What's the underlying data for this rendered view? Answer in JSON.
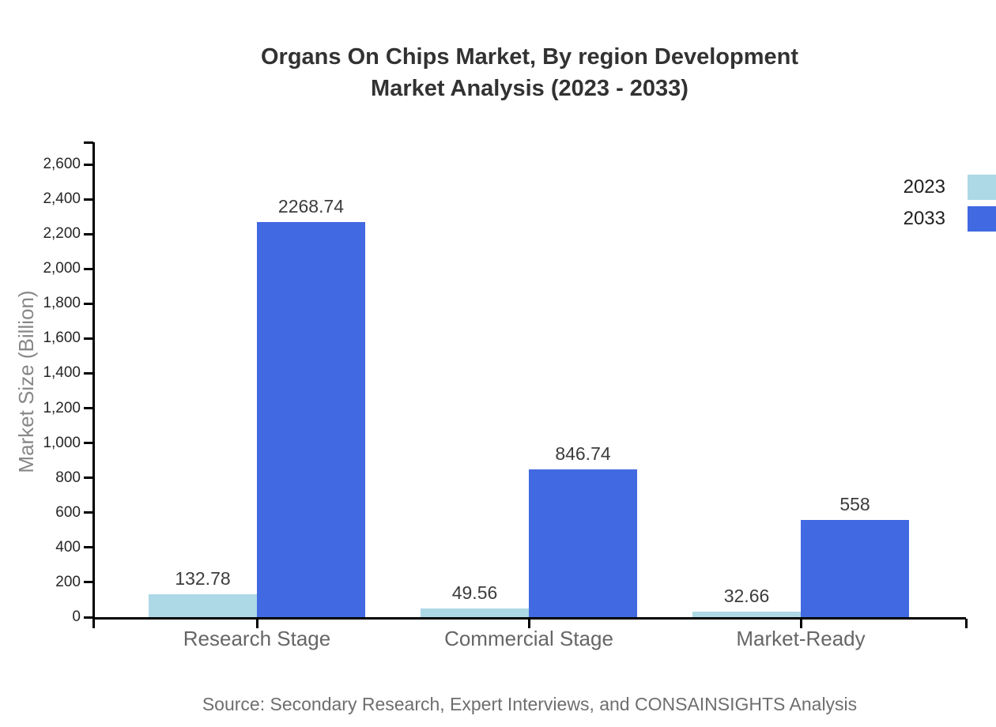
{
  "title": {
    "line1": "Organs On Chips Market, By region Development",
    "line2": "Market Analysis (2023 - 2033)"
  },
  "source": "Source: Secondary Research, Expert Interviews, and CONSAINSIGHTS Analysis",
  "legend": {
    "items": [
      {
        "label": "2023",
        "color": "#ADD8E6"
      },
      {
        "label": "2033",
        "color": "#4169E1"
      }
    ]
  },
  "chart_data": {
    "type": "bar",
    "title": "Organs On Chips Market, By region Development Market Analysis (2023 - 2033)",
    "categories": [
      "Research Stage",
      "Commercial Stage",
      "Market-Ready"
    ],
    "series": [
      {
        "name": "2023",
        "color": "#ADD8E6",
        "values": [
          132.78,
          49.56,
          32.66
        ],
        "labels": [
          "132.78",
          "49.56",
          "32.66"
        ]
      },
      {
        "name": "2033",
        "color": "#4169E1",
        "values": [
          2268.74,
          846.74,
          558
        ],
        "labels": [
          "2268.74",
          "846.74",
          "558"
        ]
      }
    ],
    "xlabel": "",
    "ylabel": "Market Size (Billion)",
    "ylim": [
      0,
      2700
    ],
    "yticks": [
      0,
      200,
      400,
      600,
      800,
      1000,
      1200,
      1400,
      1600,
      1800,
      2000,
      2200,
      2400,
      2600
    ],
    "grid": false,
    "legend_position": "top-right",
    "data_labels_shown": true
  }
}
